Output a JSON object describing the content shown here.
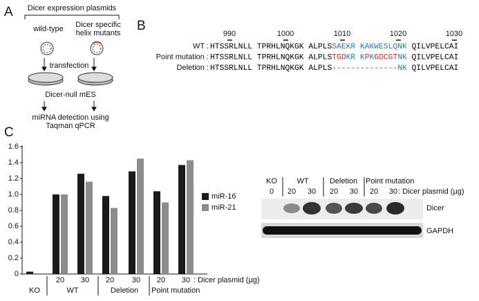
{
  "panel_a": {
    "label": "A",
    "header": "Dicer expression plasmids",
    "wild_type": "wild-type",
    "mutants": [
      "Dicer specific",
      "helix mutants"
    ],
    "step_1": "transfection",
    "step_2": "Dicer-null mES",
    "step_3": [
      "miRNA detection using",
      "Taqman qPCR"
    ]
  },
  "panel_b": {
    "label": "B",
    "positions": [
      "990",
      "1000",
      "1010",
      "1020",
      "1030"
    ],
    "rows": [
      {
        "name": "WT :",
        "segments": [
          {
            "text": "HTSSRLNLL TPRHLNQKGK ALPLS",
            "color": "#000000"
          },
          {
            "text": "SAEKR KAKWESLQNK",
            "color": "#2a7ab8"
          },
          {
            "text": " QILVPELCAI",
            "color": "#000000"
          }
        ]
      },
      {
        "name": "Point mutation :",
        "segments": [
          {
            "text": "HTSSRLNLL TPRHLNQKGK ALPLS",
            "color": "#000000"
          },
          {
            "text": "TGD",
            "color": "#d42a2a"
          },
          {
            "text": "KR K",
            "color": "#2a7ab8"
          },
          {
            "text": "P",
            "color": "#d42a2a"
          },
          {
            "text": "K",
            "color": "#2a7ab8"
          },
          {
            "text": "GDCGT",
            "color": "#d42a2a"
          },
          {
            "text": "NK",
            "color": "#2a7ab8"
          },
          {
            "text": " QILVPELCAI",
            "color": "#000000"
          }
        ]
      },
      {
        "name": "Deletion :",
        "segments": [
          {
            "text": "HTSSRLNLL TPRHLNQKGK ALPLS",
            "color": "#000000"
          },
          {
            "text": "--------------",
            "color": "#d42a2a"
          },
          {
            "text": "NK",
            "color": "#2a7ab8"
          },
          {
            "text": " QILVPELCAI",
            "color": "#000000"
          }
        ]
      }
    ]
  },
  "chart_data": {
    "type": "bar",
    "label": "C",
    "categories": [
      null,
      "20",
      "30",
      "20",
      "30",
      "20",
      "30"
    ],
    "groups": [
      "KO",
      "WT",
      "Deletion",
      "Point mutation"
    ],
    "x_note": ": Dicer plasmid (µg)",
    "series": [
      {
        "name": "miR-16",
        "color": "#1a1a1a",
        "values": [
          0.03,
          1.0,
          1.26,
          0.98,
          1.29,
          1.04,
          1.37
        ]
      },
      {
        "name": "miR-21",
        "color": "#8c8c8c",
        "values": [
          null,
          1.0,
          1.16,
          0.83,
          1.45,
          0.9,
          1.43
        ]
      }
    ],
    "ylim": [
      0,
      1.6
    ],
    "yticks": [
      0,
      0.2,
      0.4,
      0.6,
      0.8,
      {
        "value": 1,
        "label": "1.0"
      },
      1.2,
      1.4,
      1.6
    ]
  },
  "panel_d": {
    "groups": [
      "KO",
      "WT",
      "Deletion",
      "Point mutation"
    ],
    "doses": [
      "0",
      "20",
      "30",
      "20",
      "30",
      "20",
      "30"
    ],
    "dose_note": ": Dicer plasmid (µg)",
    "bands": [
      "Dicer",
      "GAPDH"
    ]
  }
}
